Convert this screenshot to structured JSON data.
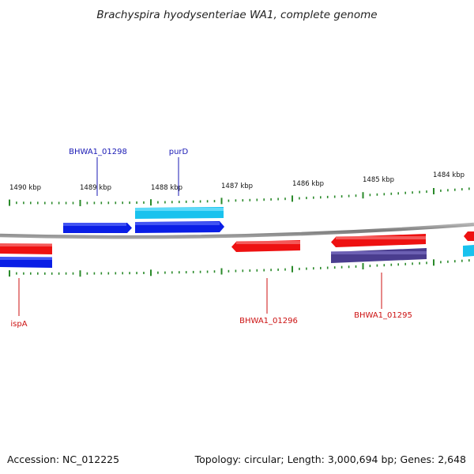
{
  "title": "Brachyspira hyodysenteriae WA1, complete genome",
  "footer": {
    "accession": "Accession: NC_012225",
    "stats": "Topology: circular; Length: 3,000,694 bp; Genes: 2,648"
  },
  "colors": {
    "forward_strand_gene": "#0a1ee6",
    "forward_strand_cds_alt": "#19c2ee",
    "reverse_strand_gene": "#ee1111",
    "reverse_strand_cds_alt": "#4a3d8f",
    "tick": "#2a8a2a",
    "backbone": "#8c8c8c",
    "forward_label": "#1a1ab5",
    "reverse_label": "#cc1111"
  },
  "ruler": {
    "unit": "kbp",
    "ticks": [
      {
        "label": "1490 kbp",
        "kbp": 1490
      },
      {
        "label": "1489 kbp",
        "kbp": 1489
      },
      {
        "label": "1488 kbp",
        "kbp": 1488
      },
      {
        "label": "1487 kbp",
        "kbp": 1487
      },
      {
        "label": "1486 kbp",
        "kbp": 1486
      },
      {
        "label": "1485 kbp",
        "kbp": 1485
      },
      {
        "label": "1484 kbp",
        "kbp": 1484
      }
    ]
  },
  "genes": [
    {
      "name": "BHWA1_01298",
      "strand": "forward"
    },
    {
      "name": "purD",
      "strand": "forward"
    },
    {
      "name": "ispA",
      "strand": "reverse"
    },
    {
      "name": "BHWA1_01296",
      "strand": "reverse"
    },
    {
      "name": "BHWA1_01295",
      "strand": "reverse"
    }
  ]
}
